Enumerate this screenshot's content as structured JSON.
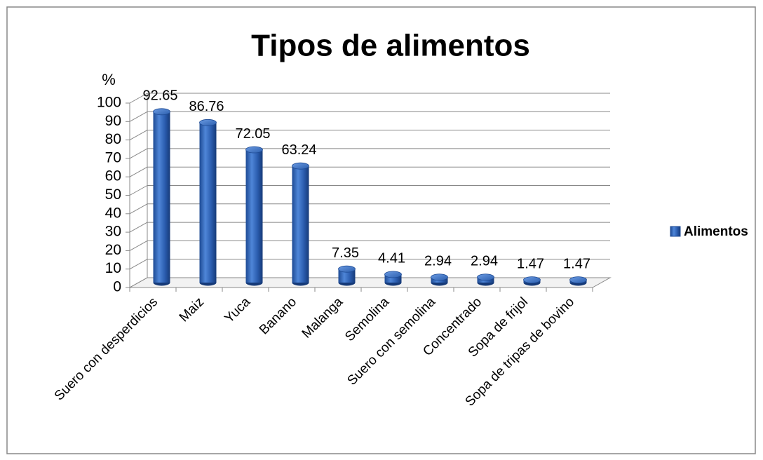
{
  "chart_data": {
    "type": "bar",
    "title": "Tipos de alimentos",
    "y_label": "%",
    "categories": [
      "Suero con desperdicios",
      "Maiz",
      "Yuca",
      "Banano",
      "Malanga",
      "Semolina",
      "Suero con semolina",
      "Concentrado",
      "Sopa de frijol",
      "Sopa de tripas de bovino"
    ],
    "series": [
      {
        "name": "Alimentos",
        "color": "#2e64b8",
        "values": [
          92.65,
          86.76,
          72.05,
          63.24,
          7.35,
          4.41,
          2.94,
          2.94,
          1.47,
          1.47
        ]
      }
    ],
    "ylim": [
      0,
      100
    ],
    "yticks": [
      0,
      10,
      20,
      30,
      40,
      50,
      60,
      70,
      80,
      90,
      100
    ],
    "grid": true,
    "legend": "right"
  }
}
